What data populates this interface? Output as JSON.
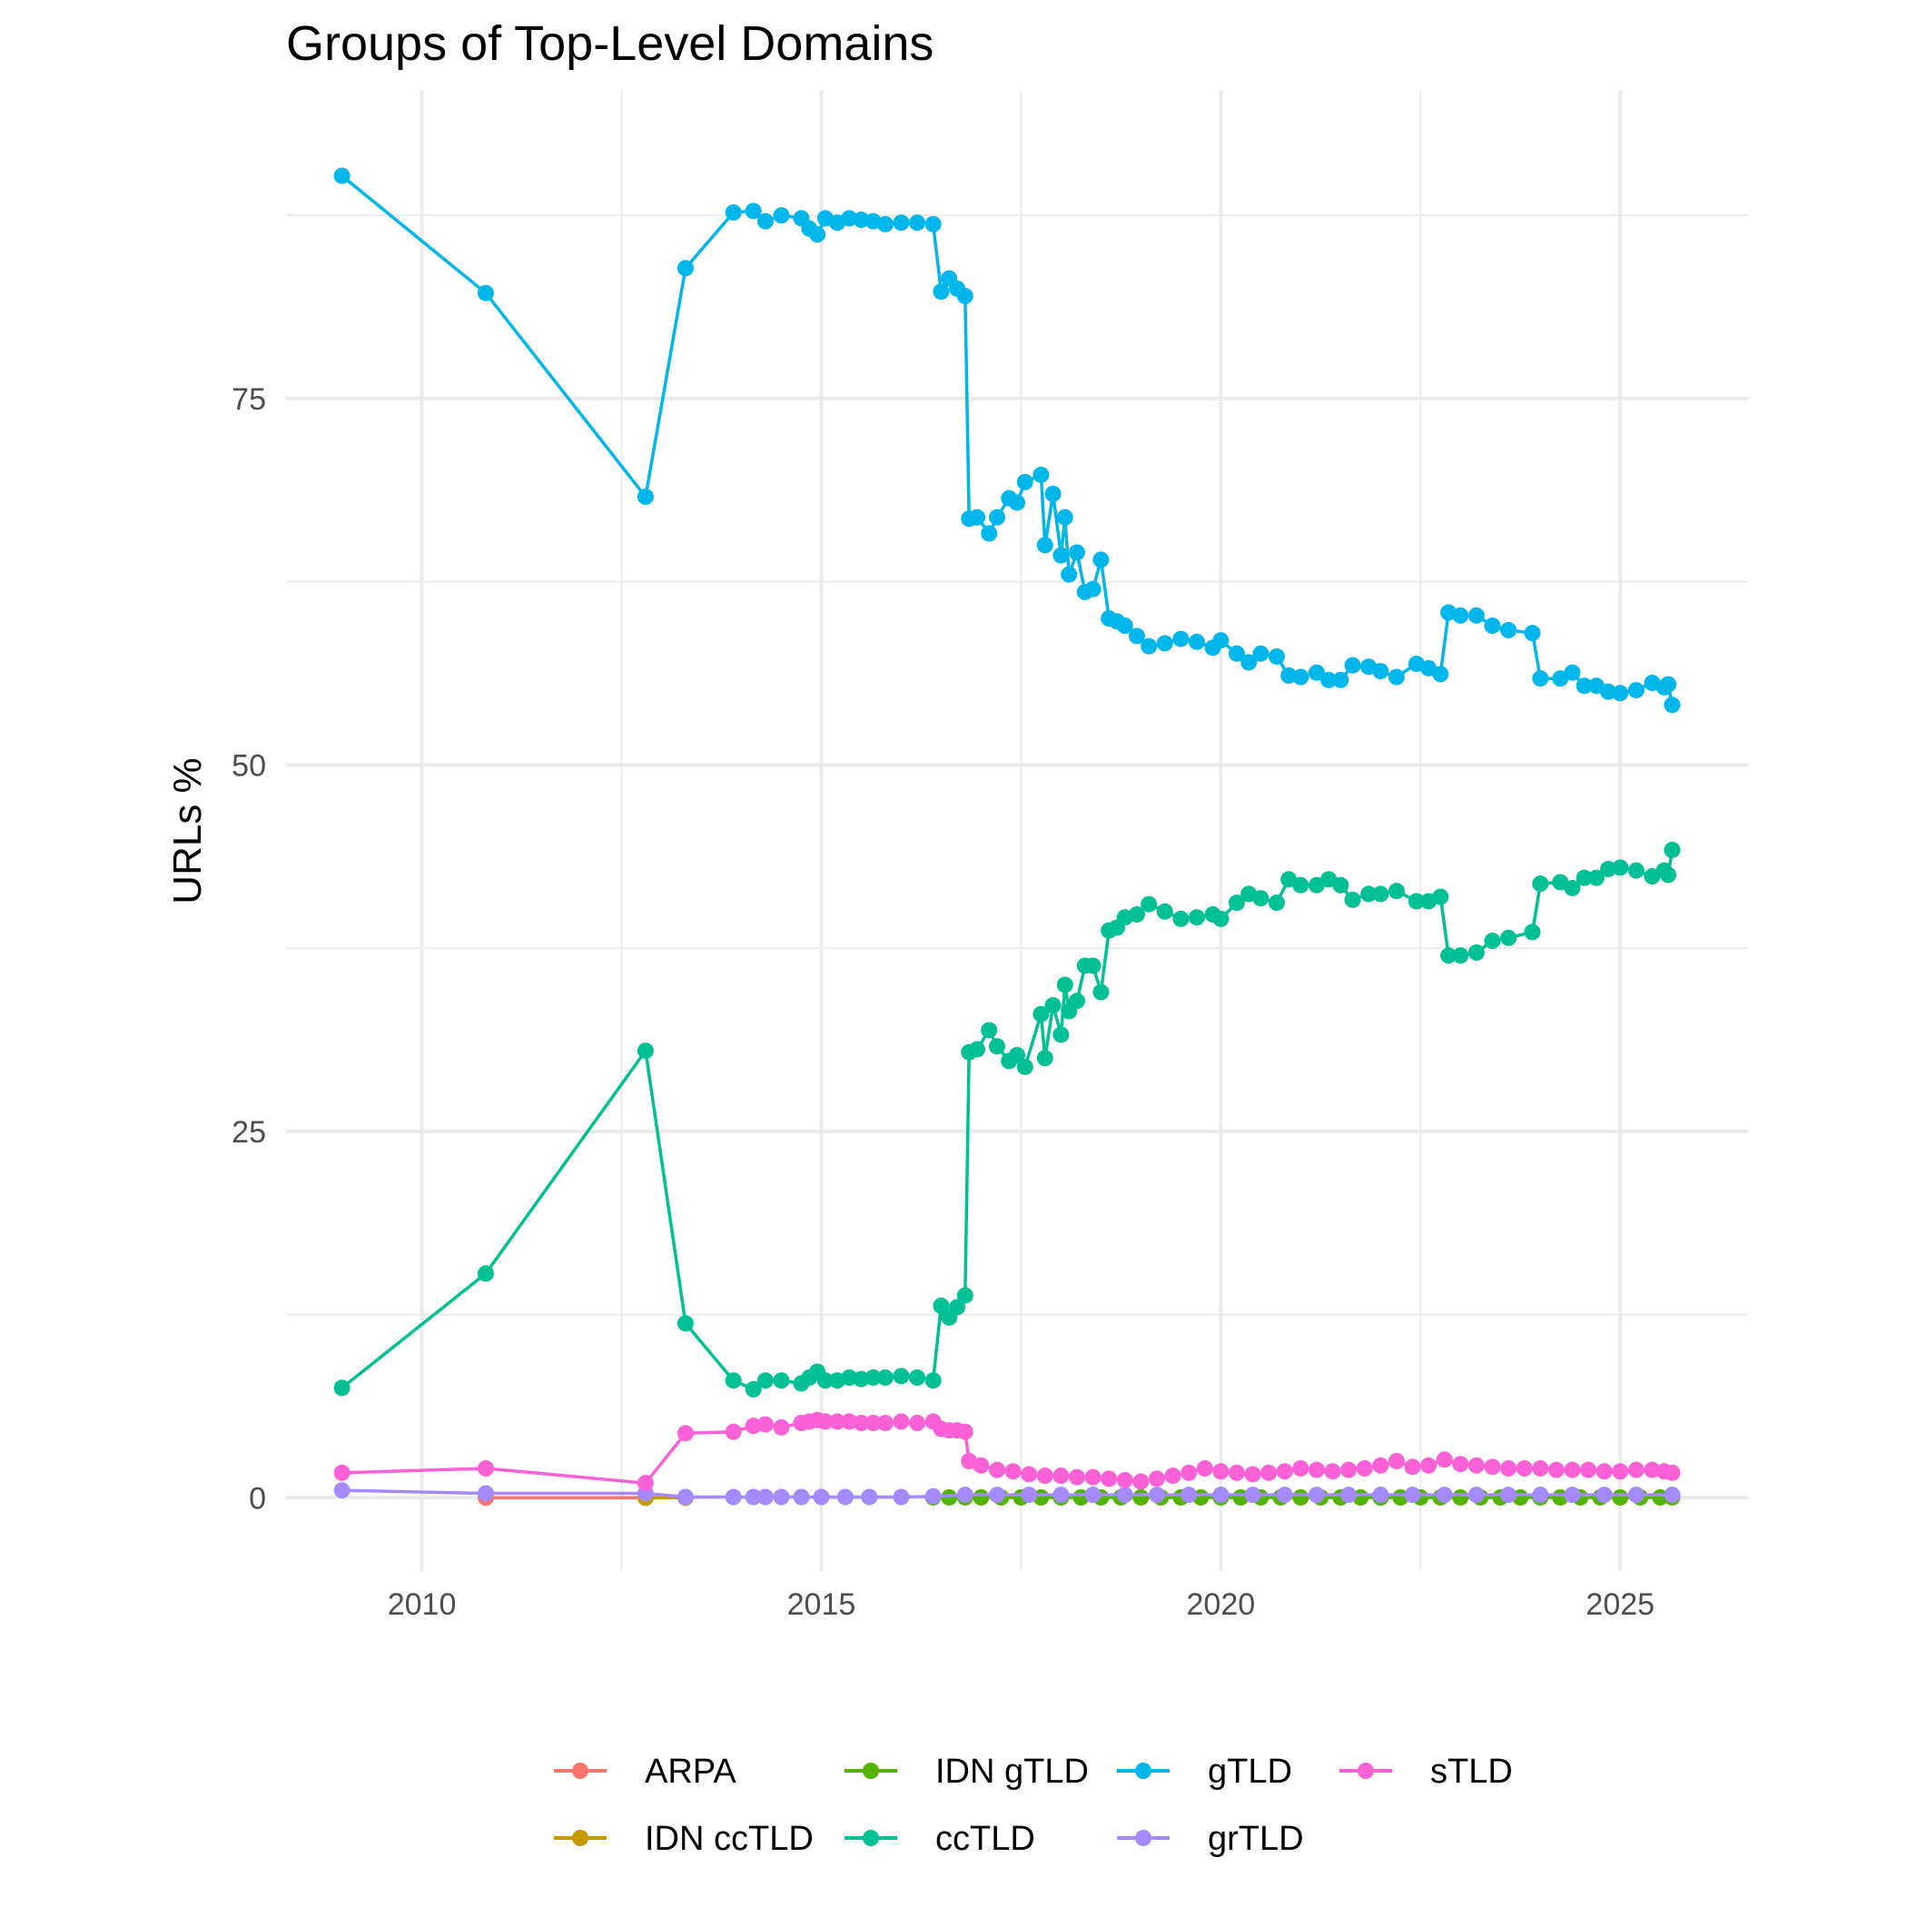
{
  "chart_data": {
    "type": "line",
    "title": "Groups of Top-Level Domains",
    "xlabel": "",
    "ylabel": "URLs %",
    "xlim": [
      2008.3,
      2026.6
    ],
    "ylim": [
      -5,
      96
    ],
    "x_ticks": [
      2010,
      2015,
      2020,
      2025
    ],
    "y_ticks": [
      0,
      25,
      50,
      75
    ],
    "grid": true,
    "legend_position": "bottom",
    "legend": [
      "ARPA",
      "IDN ccTLD",
      "IDN gTLD",
      "ccTLD",
      "gTLD",
      "grTLD",
      "sTLD"
    ],
    "series": [
      {
        "name": "ARPA",
        "color": "#F8766D",
        "x": [
          2010.8,
          2012.8
        ],
        "y": [
          0.0,
          0.0
        ]
      },
      {
        "name": "IDN ccTLD",
        "color": "#C49A00",
        "x": [
          2012.8,
          2013.3
        ],
        "y": [
          0.0,
          0.0
        ]
      },
      {
        "name": "IDN gTLD",
        "color": "#53B400",
        "x": [
          2016.4,
          2016.6,
          2016.8,
          2017.0,
          2017.25,
          2017.5,
          2017.75,
          2018.0,
          2018.25,
          2018.5,
          2018.75,
          2019.0,
          2019.25,
          2019.5,
          2019.75,
          2020.0,
          2020.25,
          2020.5,
          2020.75,
          2021.0,
          2021.25,
          2021.5,
          2021.75,
          2022.0,
          2022.25,
          2022.5,
          2022.75,
          2023.0,
          2023.25,
          2023.5,
          2023.75,
          2024.0,
          2024.25,
          2024.5,
          2024.75,
          2025.0,
          2025.25,
          2025.5,
          2025.65
        ],
        "y": [
          0.02,
          0.02,
          0.02,
          0.02,
          0.02,
          0.02,
          0.02,
          0.02,
          0.02,
          0.02,
          0.02,
          0.02,
          0.02,
          0.02,
          0.02,
          0.02,
          0.02,
          0.02,
          0.02,
          0.02,
          0.02,
          0.02,
          0.02,
          0.02,
          0.02,
          0.02,
          0.02,
          0.02,
          0.02,
          0.02,
          0.02,
          0.02,
          0.02,
          0.02,
          0.02,
          0.02,
          0.02,
          0.02,
          0.02
        ]
      },
      {
        "name": "ccTLD",
        "color": "#00C094",
        "x": [
          2009.0,
          2010.8,
          2012.8,
          2013.3,
          2013.9,
          2014.15,
          2014.3,
          2014.5,
          2014.75,
          2014.85,
          2014.95,
          2015.05,
          2015.2,
          2015.35,
          2015.5,
          2015.65,
          2015.8,
          2016.0,
          2016.2,
          2016.4,
          2016.5,
          2016.6,
          2016.7,
          2016.8,
          2016.85,
          2016.95,
          2017.1,
          2017.2,
          2017.35,
          2017.45,
          2017.55,
          2017.75,
          2017.8,
          2017.9,
          2018.0,
          2018.05,
          2018.1,
          2018.2,
          2018.3,
          2018.4,
          2018.5,
          2018.6,
          2018.7,
          2018.8,
          2018.95,
          2019.1,
          2019.3,
          2019.5,
          2019.7,
          2019.9,
          2020.0,
          2020.2,
          2020.35,
          2020.5,
          2020.7,
          2020.85,
          2021.0,
          2021.2,
          2021.35,
          2021.5,
          2021.65,
          2021.85,
          2022.0,
          2022.2,
          2022.45,
          2022.6,
          2022.75,
          2022.85,
          2023.0,
          2023.2,
          2023.4,
          2023.6,
          2023.9,
          2024.0,
          2024.25,
          2024.4,
          2024.55,
          2024.7,
          2024.85,
          2025.0,
          2025.2,
          2025.4,
          2025.55,
          2025.6,
          2025.65
        ],
        "y": [
          7.5,
          15.3,
          30.5,
          11.9,
          8.0,
          7.4,
          8.0,
          8.0,
          7.8,
          8.2,
          8.6,
          8.0,
          8.0,
          8.2,
          8.1,
          8.2,
          8.2,
          8.3,
          8.2,
          8.0,
          13.1,
          12.3,
          13.0,
          13.8,
          30.4,
          30.6,
          31.9,
          30.8,
          29.8,
          30.2,
          29.4,
          33.0,
          30.0,
          33.6,
          31.6,
          35.0,
          33.2,
          33.9,
          36.3,
          36.3,
          34.5,
          38.7,
          38.9,
          39.6,
          39.8,
          40.5,
          40.0,
          39.5,
          39.6,
          39.8,
          39.5,
          40.6,
          41.2,
          40.9,
          40.6,
          42.2,
          41.8,
          41.8,
          42.2,
          41.8,
          40.8,
          41.2,
          41.2,
          41.4,
          40.7,
          40.7,
          41.0,
          37.0,
          37.0,
          37.2,
          38.0,
          38.2,
          38.6,
          41.9,
          42.0,
          41.6,
          42.3,
          42.3,
          42.9,
          43.0,
          42.8,
          42.4,
          42.8,
          42.5,
          44.2
        ]
      },
      {
        "name": "gTLD",
        "color": "#00B6EB",
        "x": [
          2009.0,
          2010.8,
          2012.8,
          2013.3,
          2013.9,
          2014.15,
          2014.3,
          2014.5,
          2014.75,
          2014.85,
          2014.95,
          2015.05,
          2015.2,
          2015.35,
          2015.5,
          2015.65,
          2015.8,
          2016.0,
          2016.2,
          2016.4,
          2016.5,
          2016.6,
          2016.7,
          2016.8,
          2016.85,
          2016.95,
          2017.1,
          2017.2,
          2017.35,
          2017.45,
          2017.55,
          2017.75,
          2017.8,
          2017.9,
          2018.0,
          2018.05,
          2018.1,
          2018.2,
          2018.3,
          2018.4,
          2018.5,
          2018.6,
          2018.7,
          2018.8,
          2018.95,
          2019.1,
          2019.3,
          2019.5,
          2019.7,
          2019.9,
          2020.0,
          2020.2,
          2020.35,
          2020.5,
          2020.7,
          2020.85,
          2021.0,
          2021.2,
          2021.35,
          2021.5,
          2021.65,
          2021.85,
          2022.0,
          2022.2,
          2022.45,
          2022.6,
          2022.75,
          2022.85,
          2023.0,
          2023.2,
          2023.4,
          2023.6,
          2023.9,
          2024.0,
          2024.25,
          2024.4,
          2024.55,
          2024.7,
          2024.85,
          2025.0,
          2025.2,
          2025.4,
          2025.55,
          2025.6,
          2025.65
        ],
        "y": [
          90.2,
          82.2,
          68.3,
          83.9,
          87.7,
          87.8,
          87.1,
          87.5,
          87.3,
          86.6,
          86.2,
          87.3,
          87.0,
          87.3,
          87.2,
          87.1,
          86.9,
          87.0,
          87.0,
          86.9,
          82.3,
          83.2,
          82.5,
          82.0,
          66.8,
          66.9,
          65.8,
          66.9,
          68.2,
          67.9,
          69.3,
          69.8,
          65.0,
          68.5,
          64.3,
          66.9,
          63.0,
          64.5,
          61.8,
          62.0,
          64.0,
          60.0,
          59.8,
          59.5,
          58.8,
          58.1,
          58.3,
          58.6,
          58.4,
          58.0,
          58.5,
          57.6,
          57.0,
          57.6,
          57.4,
          56.1,
          56.0,
          56.3,
          55.8,
          55.8,
          56.8,
          56.7,
          56.4,
          56.0,
          56.9,
          56.6,
          56.2,
          60.4,
          60.2,
          60.2,
          59.5,
          59.2,
          59.0,
          55.9,
          55.9,
          56.3,
          55.4,
          55.4,
          55.0,
          54.9,
          55.1,
          55.6,
          55.3,
          55.5,
          54.1
        ]
      },
      {
        "name": "grTLD",
        "color": "#A58AFF",
        "x": [
          2009.0,
          2010.8,
          2012.8,
          2013.3,
          2013.9,
          2014.15,
          2014.3,
          2014.5,
          2014.75,
          2015.0,
          2015.3,
          2015.6,
          2016.0,
          2016.4,
          2016.8,
          2017.2,
          2017.6,
          2018.0,
          2018.4,
          2018.8,
          2019.2,
          2019.6,
          2020.0,
          2020.4,
          2020.8,
          2021.2,
          2021.6,
          2022.0,
          2022.4,
          2022.8,
          2023.2,
          2023.6,
          2024.0,
          2024.4,
          2024.8,
          2025.2,
          2025.65
        ],
        "y": [
          0.5,
          0.3,
          0.3,
          0.05,
          0.05,
          0.05,
          0.05,
          0.05,
          0.05,
          0.05,
          0.05,
          0.05,
          0.05,
          0.1,
          0.2,
          0.2,
          0.2,
          0.2,
          0.2,
          0.2,
          0.2,
          0.2,
          0.2,
          0.2,
          0.2,
          0.2,
          0.2,
          0.2,
          0.2,
          0.2,
          0.2,
          0.2,
          0.2,
          0.2,
          0.2,
          0.2,
          0.2
        ]
      },
      {
        "name": "sTLD",
        "color": "#FB61D7",
        "x": [
          2009.0,
          2010.8,
          2012.8,
          2013.3,
          2013.9,
          2014.15,
          2014.3,
          2014.5,
          2014.75,
          2014.85,
          2014.95,
          2015.05,
          2015.2,
          2015.35,
          2015.5,
          2015.65,
          2015.8,
          2016.0,
          2016.2,
          2016.4,
          2016.5,
          2016.6,
          2016.7,
          2016.8,
          2016.85,
          2017.0,
          2017.2,
          2017.4,
          2017.6,
          2017.8,
          2018.0,
          2018.2,
          2018.4,
          2018.6,
          2018.8,
          2019.0,
          2019.2,
          2019.4,
          2019.6,
          2019.8,
          2020.0,
          2020.2,
          2020.4,
          2020.6,
          2020.8,
          2021.0,
          2021.2,
          2021.4,
          2021.6,
          2021.8,
          2022.0,
          2022.2,
          2022.4,
          2022.6,
          2022.8,
          2023.0,
          2023.2,
          2023.4,
          2023.6,
          2023.8,
          2024.0,
          2024.2,
          2024.4,
          2024.6,
          2024.8,
          2025.0,
          2025.2,
          2025.4,
          2025.55,
          2025.65
        ],
        "y": [
          1.7,
          2.0,
          1.0,
          4.4,
          4.5,
          4.9,
          5.0,
          4.8,
          5.1,
          5.2,
          5.3,
          5.2,
          5.2,
          5.2,
          5.1,
          5.1,
          5.1,
          5.2,
          5.1,
          5.2,
          4.7,
          4.6,
          4.6,
          4.5,
          2.5,
          2.2,
          1.9,
          1.8,
          1.6,
          1.5,
          1.5,
          1.4,
          1.4,
          1.3,
          1.2,
          1.1,
          1.3,
          1.5,
          1.7,
          2.0,
          1.8,
          1.7,
          1.6,
          1.7,
          1.8,
          2.0,
          1.9,
          1.8,
          1.9,
          2.0,
          2.2,
          2.5,
          2.1,
          2.2,
          2.6,
          2.3,
          2.2,
          2.1,
          2.0,
          2.0,
          2.0,
          1.9,
          1.9,
          1.9,
          1.8,
          1.8,
          1.9,
          1.9,
          1.8,
          1.7
        ]
      }
    ]
  }
}
